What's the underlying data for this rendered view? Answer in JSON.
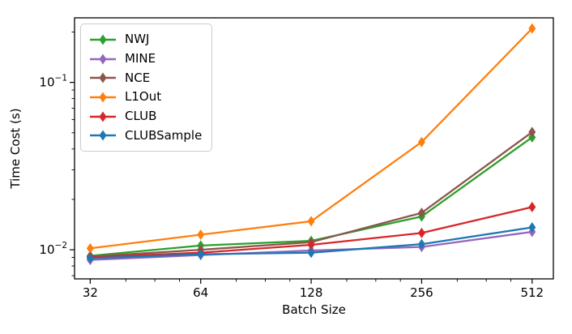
{
  "figure": {
    "background": "#ffffff",
    "frame_color": "#000000"
  },
  "chart_data": {
    "type": "line",
    "title": "",
    "xlabel": "Batch Size",
    "ylabel": "Time Cost (s)",
    "xscale": "log2",
    "yscale": "log10",
    "xlim": [
      29,
      585
    ],
    "ylim": [
      0.0067,
      0.243
    ],
    "grid": false,
    "legend_position": "upper-left",
    "marker": "thin-diamond",
    "x": [
      32,
      64,
      128,
      256,
      512
    ],
    "xtick_labels": [
      "32",
      "64",
      "128",
      "256",
      "512"
    ],
    "ytick_major": [
      {
        "value": 0.1,
        "base": "10",
        "exponent": "−1"
      },
      {
        "value": 0.01,
        "base": "10",
        "exponent": "−2"
      }
    ],
    "ytick_minor": [
      0.007,
      0.008,
      0.009,
      0.02,
      0.03,
      0.04,
      0.05,
      0.06,
      0.07,
      0.08,
      0.09,
      0.2
    ],
    "series": [
      {
        "name": "NWJ",
        "color": "#2ca02c",
        "values": [
          0.0092,
          0.0106,
          0.0113,
          0.0158,
          0.047
        ]
      },
      {
        "name": "MINE",
        "color": "#9467bd",
        "values": [
          0.0087,
          0.0093,
          0.0099,
          0.0104,
          0.0128
        ]
      },
      {
        "name": "NCE",
        "color": "#8c564b",
        "values": [
          0.0091,
          0.01,
          0.0111,
          0.0166,
          0.0505
        ]
      },
      {
        "name": "L1Out",
        "color": "#ff7f0e",
        "values": [
          0.0102,
          0.0123,
          0.0148,
          0.044,
          0.21
        ]
      },
      {
        "name": "CLUB",
        "color": "#d62728",
        "values": [
          0.009,
          0.0096,
          0.0107,
          0.0126,
          0.018
        ]
      },
      {
        "name": "CLUBSample",
        "color": "#1f77b4",
        "values": [
          0.0089,
          0.0094,
          0.0096,
          0.0108,
          0.0136
        ]
      }
    ]
  }
}
